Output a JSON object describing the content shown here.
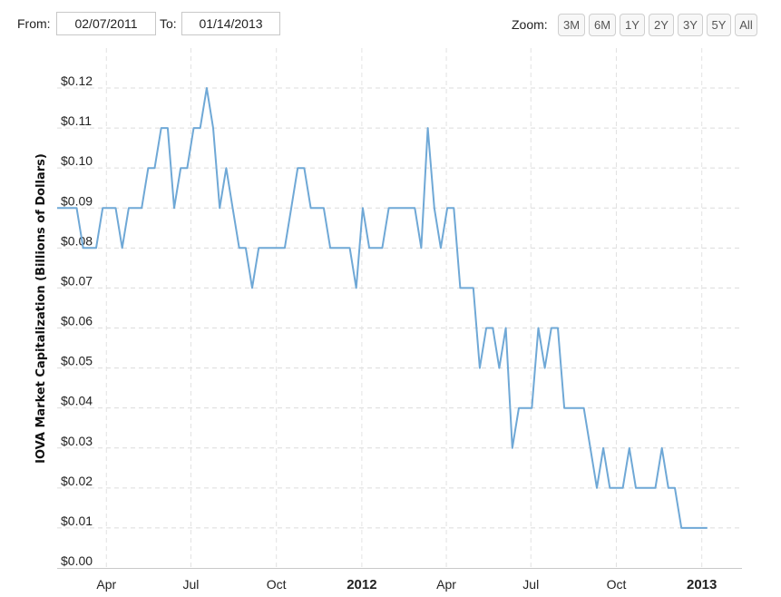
{
  "toolbar": {
    "from_label": "From:",
    "from_value": "02/07/2011",
    "to_label": "To:",
    "to_value": "01/14/2013",
    "zoom_label": "Zoom:",
    "zoom_options": [
      "3M",
      "6M",
      "1Y",
      "2Y",
      "3Y",
      "5Y",
      "All"
    ]
  },
  "chart_data": {
    "type": "line",
    "title": "",
    "xlabel": "",
    "ylabel": "IOVA Market Capitalization (Billions of Dollars)",
    "ylim": [
      0,
      0.12
    ],
    "xlim": [
      "2011-02-07",
      "2013-01-14"
    ],
    "y_ticks": [
      0.0,
      0.01,
      0.02,
      0.03,
      0.04,
      0.05,
      0.06,
      0.07,
      0.08,
      0.09,
      0.1,
      0.11,
      0.12
    ],
    "y_tick_labels": [
      "$0.00",
      "$0.01",
      "$0.02",
      "$0.03",
      "$0.04",
      "$0.05",
      "$0.06",
      "$0.07",
      "$0.08",
      "$0.09",
      "$0.10",
      "$0.11",
      "$0.12"
    ],
    "x_ticks": [
      {
        "date": "2011-04-01",
        "label": "Apr",
        "bold": false
      },
      {
        "date": "2011-07-01",
        "label": "Jul",
        "bold": false
      },
      {
        "date": "2011-10-01",
        "label": "Oct",
        "bold": false
      },
      {
        "date": "2012-01-01",
        "label": "2012",
        "bold": true
      },
      {
        "date": "2012-04-01",
        "label": "Apr",
        "bold": false
      },
      {
        "date": "2012-07-01",
        "label": "Jul",
        "bold": false
      },
      {
        "date": "2012-10-01",
        "label": "Oct",
        "bold": false
      },
      {
        "date": "2013-01-01",
        "label": "2013",
        "bold": true
      }
    ],
    "grid": true,
    "line_color": "#6fa8d6",
    "series": [
      {
        "name": "",
        "points": [
          [
            "2011-02-07",
            0.09
          ],
          [
            "2011-02-28",
            0.09
          ],
          [
            "2011-03-07",
            0.08
          ],
          [
            "2011-03-21",
            0.08
          ],
          [
            "2011-03-28",
            0.09
          ],
          [
            "2011-04-11",
            0.09
          ],
          [
            "2011-04-18",
            0.08
          ],
          [
            "2011-04-25",
            0.09
          ],
          [
            "2011-05-09",
            0.09
          ],
          [
            "2011-05-16",
            0.1
          ],
          [
            "2011-05-23",
            0.1
          ],
          [
            "2011-05-30",
            0.11
          ],
          [
            "2011-06-06",
            0.11
          ],
          [
            "2011-06-13",
            0.09
          ],
          [
            "2011-06-20",
            0.1
          ],
          [
            "2011-06-27",
            0.1
          ],
          [
            "2011-07-04",
            0.11
          ],
          [
            "2011-07-11",
            0.11
          ],
          [
            "2011-07-18",
            0.12
          ],
          [
            "2011-07-25",
            0.11
          ],
          [
            "2011-08-01",
            0.09
          ],
          [
            "2011-08-08",
            0.1
          ],
          [
            "2011-08-15",
            0.09
          ],
          [
            "2011-08-22",
            0.08
          ],
          [
            "2011-08-29",
            0.08
          ],
          [
            "2011-09-05",
            0.07
          ],
          [
            "2011-09-12",
            0.08
          ],
          [
            "2011-10-03",
            0.08
          ],
          [
            "2011-10-10",
            0.08
          ],
          [
            "2011-10-17",
            0.09
          ],
          [
            "2011-10-24",
            0.1
          ],
          [
            "2011-10-31",
            0.1
          ],
          [
            "2011-11-07",
            0.09
          ],
          [
            "2011-11-21",
            0.09
          ],
          [
            "2011-11-28",
            0.08
          ],
          [
            "2011-12-12",
            0.08
          ],
          [
            "2011-12-19",
            0.08
          ],
          [
            "2011-12-26",
            0.07
          ],
          [
            "2012-01-02",
            0.09
          ],
          [
            "2012-01-09",
            0.08
          ],
          [
            "2012-01-23",
            0.08
          ],
          [
            "2012-01-30",
            0.09
          ],
          [
            "2012-02-27",
            0.09
          ],
          [
            "2012-03-05",
            0.08
          ],
          [
            "2012-03-12",
            0.11
          ],
          [
            "2012-03-19",
            0.09
          ],
          [
            "2012-03-26",
            0.08
          ],
          [
            "2012-04-02",
            0.09
          ],
          [
            "2012-04-09",
            0.09
          ],
          [
            "2012-04-16",
            0.07
          ],
          [
            "2012-04-30",
            0.07
          ],
          [
            "2012-05-07",
            0.05
          ],
          [
            "2012-05-14",
            0.06
          ],
          [
            "2012-05-21",
            0.06
          ],
          [
            "2012-05-28",
            0.05
          ],
          [
            "2012-06-04",
            0.06
          ],
          [
            "2012-06-11",
            0.03
          ],
          [
            "2012-06-18",
            0.04
          ],
          [
            "2012-07-02",
            0.04
          ],
          [
            "2012-07-09",
            0.06
          ],
          [
            "2012-07-16",
            0.05
          ],
          [
            "2012-07-23",
            0.06
          ],
          [
            "2012-07-30",
            0.06
          ],
          [
            "2012-08-06",
            0.04
          ],
          [
            "2012-08-27",
            0.04
          ],
          [
            "2012-09-10",
            0.02
          ],
          [
            "2012-09-17",
            0.03
          ],
          [
            "2012-09-24",
            0.02
          ],
          [
            "2012-10-08",
            0.02
          ],
          [
            "2012-10-15",
            0.03
          ],
          [
            "2012-10-22",
            0.02
          ],
          [
            "2012-11-12",
            0.02
          ],
          [
            "2012-11-19",
            0.03
          ],
          [
            "2012-11-26",
            0.02
          ],
          [
            "2012-12-03",
            0.02
          ],
          [
            "2012-12-10",
            0.01
          ],
          [
            "2013-01-07",
            0.01
          ]
        ]
      }
    ]
  }
}
